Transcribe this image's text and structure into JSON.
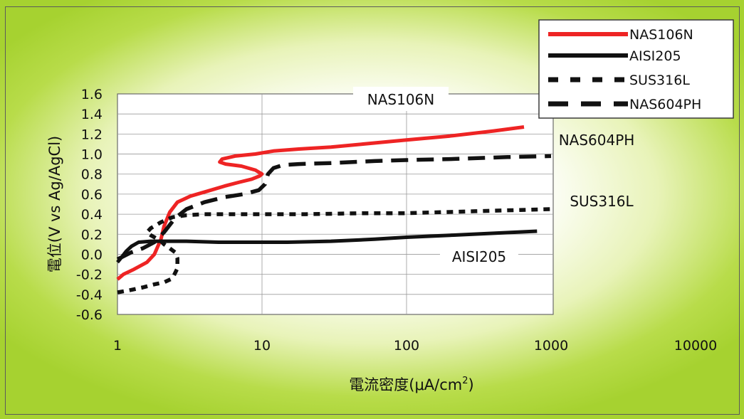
{
  "chart_data": {
    "type": "line",
    "xscale": "log",
    "xlim": [
      1,
      10000
    ],
    "ylim": [
      -0.6,
      1.6
    ],
    "xticks": [
      "1",
      "10",
      "100",
      "1000",
      "10000"
    ],
    "yticks": [
      "1.6",
      "1.4",
      "1.2",
      "1.0",
      "0.8",
      "0.6",
      "0.4",
      "0.2",
      "0.0",
      "-0.2",
      "-0.4",
      "-0.6"
    ],
    "xlabel": "電流密度(μA/cm",
    "xlabel_sup": "2",
    "xlabel_close": ")",
    "ylabel": "電位(V vs Ag/AgCl)",
    "grid": true,
    "legend_position": "top-right",
    "series": [
      {
        "name": "NAS106N",
        "color": "#ee2424",
        "style": "solid",
        "x": [
          1.0,
          1.1,
          1.3,
          1.6,
          1.8,
          2.0,
          2.1,
          2.3,
          2.6,
          3.2,
          4.2,
          5.5,
          7.0,
          8.5,
          9.6,
          10.0,
          9.0,
          7.2,
          5.6,
          5.1,
          5.3,
          6.5,
          9.0,
          12,
          18,
          30,
          50,
          100,
          200,
          400,
          650
        ],
        "y": [
          -0.25,
          -0.2,
          -0.15,
          -0.08,
          0.0,
          0.15,
          0.28,
          0.42,
          0.52,
          0.58,
          0.63,
          0.68,
          0.72,
          0.75,
          0.78,
          0.8,
          0.84,
          0.88,
          0.9,
          0.92,
          0.95,
          0.98,
          1.0,
          1.03,
          1.05,
          1.07,
          1.1,
          1.14,
          1.18,
          1.23,
          1.27
        ]
      },
      {
        "name": "AISI205",
        "color": "#111111",
        "style": "solid",
        "x": [
          1.0,
          1.08,
          1.15,
          1.25,
          1.4,
          1.7,
          2.0,
          3.0,
          5.0,
          8.0,
          10.0,
          15,
          30,
          60,
          100,
          200,
          400,
          800
        ],
        "y": [
          -0.08,
          -0.02,
          0.03,
          0.08,
          0.12,
          0.13,
          0.13,
          0.13,
          0.12,
          0.12,
          0.12,
          0.12,
          0.13,
          0.15,
          0.17,
          0.19,
          0.21,
          0.23
        ]
      },
      {
        "name": "SUS316L",
        "color": "#111111",
        "style": "dotted",
        "x": [
          1.0,
          1.2,
          1.5,
          1.8,
          2.1,
          2.4,
          2.6,
          2.6,
          2.5,
          2.3,
          2.1,
          2.0,
          1.85,
          1.7,
          1.6,
          1.7,
          2.0,
          2.4,
          3.0,
          4.0,
          6.0,
          10,
          20,
          50,
          100,
          300,
          1000
        ],
        "y": [
          -0.38,
          -0.36,
          -0.33,
          -0.3,
          -0.28,
          -0.24,
          -0.14,
          -0.04,
          0.02,
          0.06,
          0.1,
          0.13,
          0.16,
          0.19,
          0.22,
          0.26,
          0.32,
          0.37,
          0.39,
          0.4,
          0.4,
          0.4,
          0.4,
          0.41,
          0.41,
          0.43,
          0.45
        ]
      },
      {
        "name": "NAS604PH",
        "color": "#111111",
        "style": "dashed",
        "x": [
          1.0,
          1.1,
          1.25,
          1.5,
          1.8,
          2.1,
          2.5,
          3.0,
          4.0,
          5.5,
          7.5,
          9.5,
          10.5,
          11,
          12,
          14,
          18,
          30,
          60,
          100,
          200,
          500,
          1000
        ],
        "y": [
          -0.05,
          -0.02,
          0.02,
          0.06,
          0.12,
          0.22,
          0.36,
          0.45,
          0.52,
          0.57,
          0.6,
          0.64,
          0.7,
          0.8,
          0.86,
          0.89,
          0.9,
          0.91,
          0.93,
          0.94,
          0.95,
          0.97,
          0.98
        ]
      }
    ],
    "annotations": [
      "NAS106N",
      "NAS604PH",
      "SUS316L",
      "AISI205"
    ]
  }
}
